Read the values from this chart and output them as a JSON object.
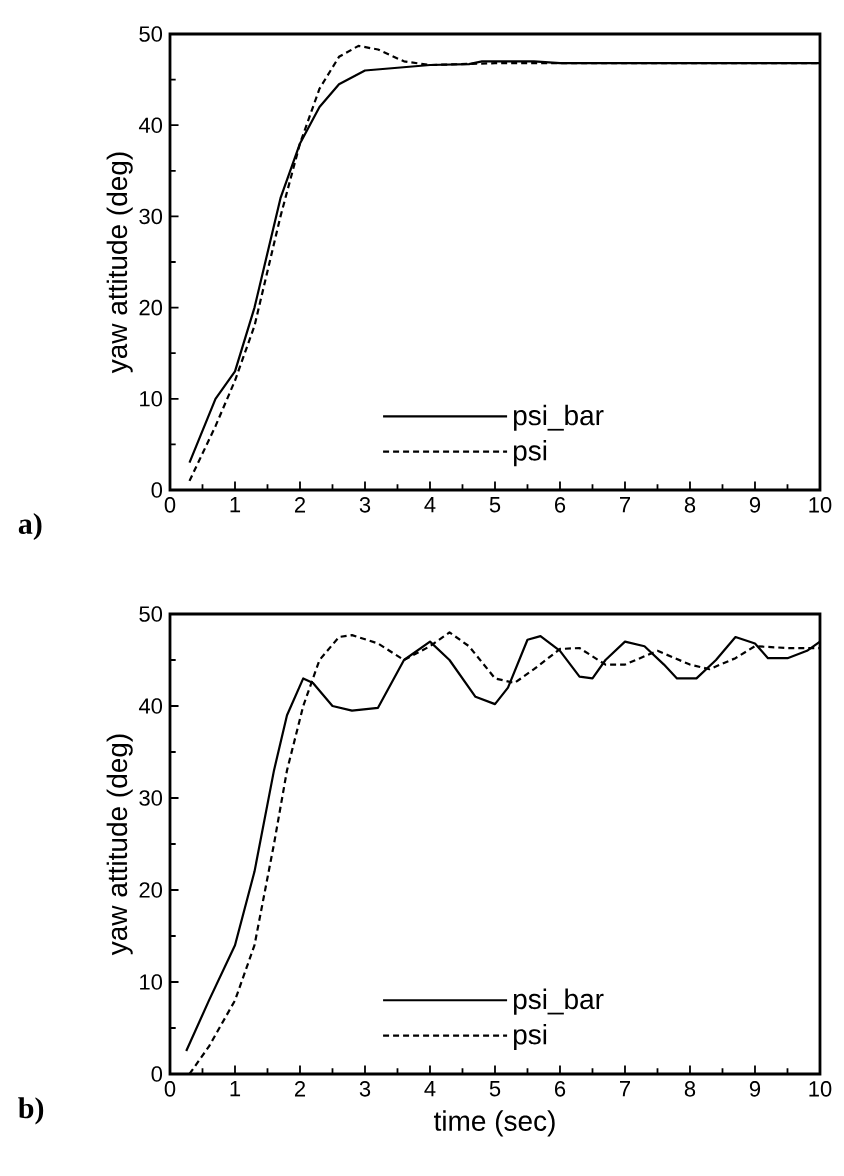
{
  "chart_data": [
    {
      "type": "line",
      "ylabel": "yaw  attitude  (deg)",
      "xlim": [
        0,
        10
      ],
      "ylim": [
        0,
        50
      ],
      "xticks": [
        0,
        1,
        2,
        3,
        4,
        5,
        6,
        7,
        8,
        9,
        10
      ],
      "yticks": [
        0,
        10,
        20,
        30,
        40,
        50
      ],
      "legend": "bottom",
      "annotations": [
        "a)"
      ],
      "series": [
        {
          "name": "psi_bar",
          "color": "#000000",
          "line_style": "solid",
          "x": [
            0.3,
            0.7,
            1.0,
            1.3,
            1.7,
            2.0,
            2.3,
            2.6,
            3.0,
            3.5,
            4.0,
            4.6,
            4.8,
            5.6,
            6.0,
            10.0
          ],
          "values": [
            3,
            10,
            13,
            20,
            32,
            38,
            42,
            44.5,
            46,
            46.3,
            46.6,
            46.7,
            47,
            47,
            46.8,
            46.8
          ]
        },
        {
          "name": "psi",
          "color": "#000000",
          "line_style": "dashed",
          "x": [
            0.3,
            0.7,
            1.0,
            1.3,
            1.7,
            2.0,
            2.3,
            2.6,
            2.9,
            3.2,
            3.6,
            4.0,
            5.0,
            10.0
          ],
          "values": [
            1,
            7,
            12,
            18,
            30,
            38,
            44,
            47.5,
            48.7,
            48.3,
            47,
            46.6,
            46.8,
            46.8
          ]
        }
      ]
    },
    {
      "type": "line",
      "xlabel": "time  (sec)",
      "ylabel": "yaw  attitude  (deg)",
      "xlim": [
        0,
        10
      ],
      "ylim": [
        0,
        50
      ],
      "xticks": [
        0,
        1,
        2,
        3,
        4,
        5,
        6,
        7,
        8,
        9,
        10
      ],
      "yticks": [
        0,
        10,
        20,
        30,
        40,
        50
      ],
      "legend": "bottom",
      "annotations": [
        "b)"
      ],
      "series": [
        {
          "name": "psi_bar",
          "color": "#000000",
          "line_style": "solid",
          "x": [
            0.25,
            0.6,
            1.0,
            1.3,
            1.6,
            1.8,
            2.05,
            2.2,
            2.5,
            2.8,
            3.2,
            3.6,
            4.0,
            4.3,
            4.7,
            5.0,
            5.2,
            5.5,
            5.7,
            6.0,
            6.3,
            6.5,
            6.7,
            7.0,
            7.3,
            7.6,
            7.8,
            8.1,
            8.4,
            8.7,
            9.0,
            9.2,
            9.5,
            9.8,
            10.0
          ],
          "values": [
            2.5,
            8,
            14,
            22,
            33,
            39,
            43,
            42.5,
            40,
            39.5,
            39.8,
            45,
            47,
            45,
            41,
            40.2,
            42,
            47.2,
            47.6,
            46,
            43.2,
            43,
            45,
            47,
            46.5,
            44.5,
            43,
            43,
            45,
            47.5,
            46.8,
            45.2,
            45.2,
            46,
            47
          ]
        },
        {
          "name": "psi",
          "color": "#000000",
          "line_style": "dashed",
          "x": [
            0.3,
            0.6,
            1.0,
            1.3,
            1.6,
            1.8,
            2.05,
            2.3,
            2.6,
            2.8,
            3.2,
            3.6,
            4.0,
            4.3,
            4.6,
            5.0,
            5.3,
            5.6,
            6.0,
            6.3,
            6.7,
            7.0,
            7.5,
            8.0,
            8.3,
            8.7,
            9.0,
            9.5,
            10.0
          ],
          "values": [
            0,
            3,
            8,
            14,
            25,
            33,
            40,
            45,
            47.5,
            47.7,
            46.8,
            45,
            46.5,
            48,
            46.5,
            43,
            42.5,
            44,
            46.2,
            46.3,
            44.5,
            44.5,
            46,
            44.5,
            44,
            45.2,
            46.5,
            46.3,
            46.3
          ]
        }
      ]
    }
  ]
}
